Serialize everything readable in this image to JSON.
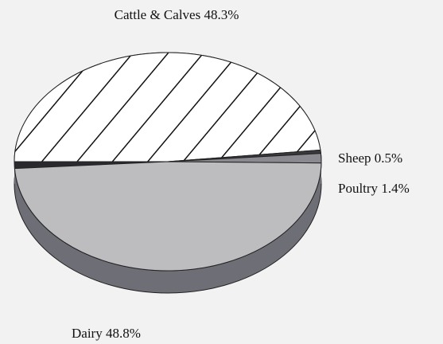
{
  "chart_data": {
    "type": "pie",
    "categories": [
      "Cattle & Calves",
      "Sheep",
      "Poultry",
      "Dairy"
    ],
    "values": [
      48.3,
      0.5,
      1.4,
      48.8
    ],
    "value_labels": [
      "48.3%",
      "0.5%",
      "1.4%",
      "48.8%"
    ],
    "colors": [
      "#ffffff",
      "#3a3a3e",
      "#8a8a90",
      "#bdbdc0"
    ]
  }
}
